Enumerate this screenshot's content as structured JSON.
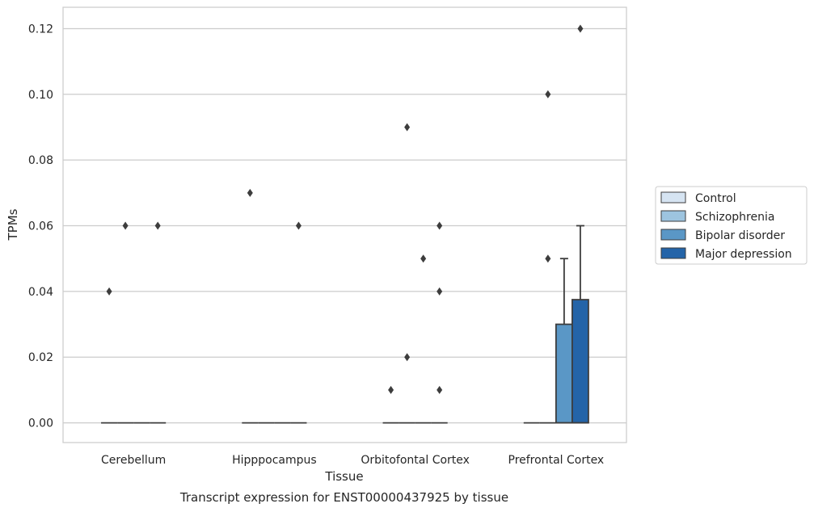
{
  "chart_data": {
    "type": "box",
    "title": "",
    "caption": "Transcript expression for ENST00000437925 by tissue",
    "xlabel": "Tissue",
    "ylabel": "TPMs",
    "ylim": [
      -0.006,
      0.1265
    ],
    "yticks": [
      0.0,
      0.02,
      0.04,
      0.06,
      0.08,
      0.1,
      0.12
    ],
    "ytick_labels": [
      "0.00",
      "0.02",
      "0.04",
      "0.06",
      "0.08",
      "0.10",
      "0.12"
    ],
    "grid": true,
    "legend_position": "right",
    "categories": [
      "Cerebellum",
      "Hipppocampus",
      "Orbitofontal Cortex",
      "Prefrontal Cortex"
    ],
    "series": [
      {
        "name": "Control",
        "color": "#d6e4f2",
        "boxes": [
          {
            "q1": 0,
            "median": 0,
            "q3": 0,
            "whisker_low": 0,
            "whisker_high": 0,
            "outliers": [
              0.04
            ]
          },
          {
            "q1": 0,
            "median": 0,
            "q3": 0,
            "whisker_low": 0,
            "whisker_high": 0,
            "outliers": [
              0.07
            ]
          },
          {
            "q1": 0,
            "median": 0,
            "q3": 0,
            "whisker_low": 0,
            "whisker_high": 0,
            "outliers": [
              0.01
            ]
          },
          {
            "q1": 0,
            "median": 0,
            "q3": 0,
            "whisker_low": 0,
            "whisker_high": 0,
            "outliers": []
          }
        ]
      },
      {
        "name": "Schizophrenia",
        "color": "#9dc4df",
        "boxes": [
          {
            "q1": 0,
            "median": 0,
            "q3": 0,
            "whisker_low": 0,
            "whisker_high": 0,
            "outliers": [
              0.06
            ]
          },
          {
            "q1": 0,
            "median": 0,
            "q3": 0,
            "whisker_low": 0,
            "whisker_high": 0,
            "outliers": []
          },
          {
            "q1": 0,
            "median": 0,
            "q3": 0,
            "whisker_low": 0,
            "whisker_high": 0,
            "outliers": [
              0.09,
              0.02
            ]
          },
          {
            "q1": 0,
            "median": 0,
            "q3": 0,
            "whisker_low": 0,
            "whisker_high": 0,
            "outliers": [
              0.1,
              0.05
            ]
          }
        ]
      },
      {
        "name": "Bipolar disorder",
        "color": "#5a97c6",
        "boxes": [
          {
            "q1": 0,
            "median": 0,
            "q3": 0,
            "whisker_low": 0,
            "whisker_high": 0,
            "outliers": []
          },
          {
            "q1": 0,
            "median": 0,
            "q3": 0,
            "whisker_low": 0,
            "whisker_high": 0,
            "outliers": []
          },
          {
            "q1": 0,
            "median": 0,
            "q3": 0,
            "whisker_low": 0,
            "whisker_high": 0,
            "outliers": [
              0.05
            ]
          },
          {
            "q1": 0,
            "median": 0,
            "q3": 0.03,
            "whisker_low": 0,
            "whisker_high": 0.05,
            "outliers": []
          }
        ]
      },
      {
        "name": "Major depression",
        "color": "#2464a8",
        "boxes": [
          {
            "q1": 0,
            "median": 0,
            "q3": 0,
            "whisker_low": 0,
            "whisker_high": 0,
            "outliers": [
              0.06
            ]
          },
          {
            "q1": 0,
            "median": 0,
            "q3": 0,
            "whisker_low": 0,
            "whisker_high": 0,
            "outliers": [
              0.06
            ]
          },
          {
            "q1": 0,
            "median": 0,
            "q3": 0,
            "whisker_low": 0,
            "whisker_high": 0,
            "outliers": [
              0.06,
              0.04,
              0.01
            ]
          },
          {
            "q1": 0,
            "median": 0,
            "q3": 0.0375,
            "whisker_low": 0,
            "whisker_high": 0.06,
            "outliers": [
              0.12
            ]
          }
        ]
      }
    ]
  }
}
